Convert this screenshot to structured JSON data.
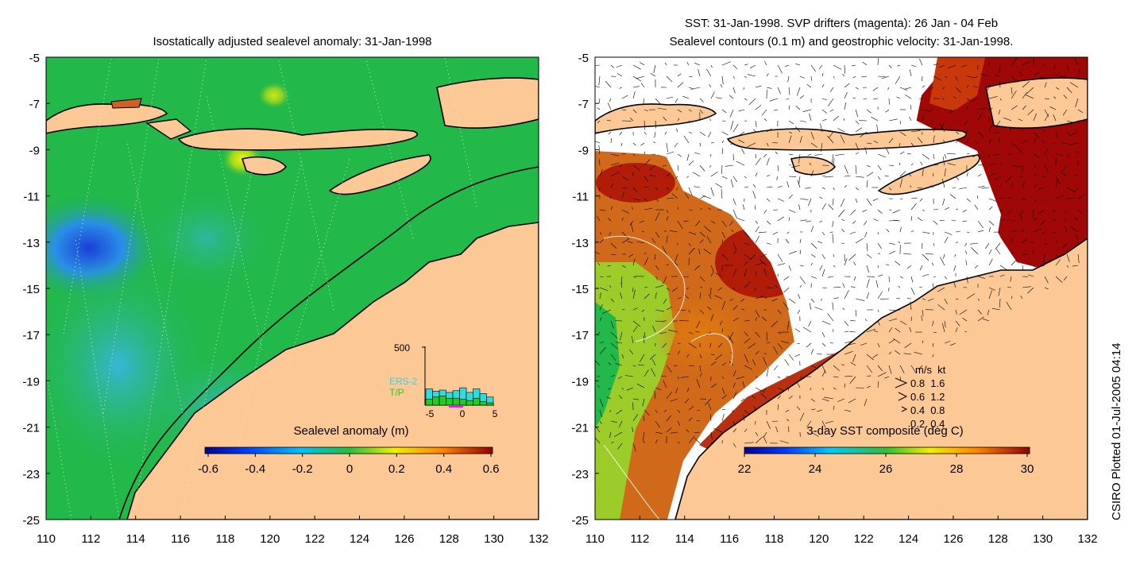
{
  "left_panel": {
    "title": "Isostatically adjusted sealevel anomaly: 31-Jan-1998",
    "y_ticks": [
      "-5",
      "-7",
      "-9",
      "-11",
      "-13",
      "-15",
      "-17",
      "-19",
      "-21",
      "-23",
      "-25"
    ],
    "x_ticks": [
      "110",
      "112",
      "114",
      "116",
      "118",
      "120",
      "122",
      "124",
      "126",
      "128",
      "130",
      "132"
    ],
    "colorbar": {
      "label": "Sealevel anomaly (m)",
      "ticks": [
        "-0.6",
        "-0.4",
        "-0.2",
        "0",
        "0.2",
        "0.4",
        "0.6"
      ]
    },
    "inset": {
      "y_top_label": "500",
      "x_ticks": [
        "-5",
        "0",
        "5"
      ],
      "legend": [
        {
          "text": "ERS-2",
          "color": "#33d9dd"
        },
        {
          "text": "T/P",
          "color": "#22cc22"
        }
      ],
      "ers2_values": [
        0.28,
        0.24,
        0.26,
        0.22,
        0.25,
        0.3,
        0.22,
        0.28,
        0.2,
        0.14
      ],
      "tp_values": [
        0.1,
        0.14,
        0.16,
        0.12,
        0.12,
        0.1,
        0.08,
        0.12,
        0.06,
        0.04
      ]
    }
  },
  "right_panel": {
    "title_line1": "SST: 31-Jan-1998. SVP drifters (magenta): 26 Jan - 04 Feb",
    "title_line2": "Sealevel contours (0.1 m) and geostrophic velocity: 31-Jan-1998.",
    "y_ticks": [
      "-5",
      "-7",
      "-9",
      "-11",
      "-13",
      "-15",
      "-17",
      "-19",
      "-21",
      "-23",
      "-25"
    ],
    "x_ticks": [
      "110",
      "112",
      "114",
      "116",
      "118",
      "120",
      "122",
      "124",
      "126",
      "128",
      "130",
      "132"
    ],
    "colorbar": {
      "label": "3-day SST composite (deg C)",
      "ticks": [
        "22",
        "24",
        "26",
        "28",
        "30"
      ]
    },
    "velocity_key": {
      "header": "m/s  kt",
      "rows": [
        "0.8  1.6",
        "0.6  1.2",
        "0.4  0.8",
        "0.2  0.4"
      ]
    }
  },
  "side_text": "CSIRO Plotted 01-Jul-2005 04:14",
  "colors": {
    "land": "#fcc896",
    "ocean_left": "#22b84a",
    "sst_warm": "#c8380a",
    "sst_dark": "#a00808",
    "cloud": "#ffffff"
  }
}
